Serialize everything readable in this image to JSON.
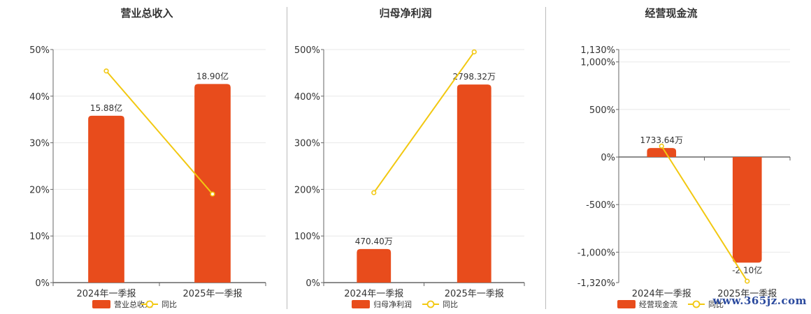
{
  "colors": {
    "bar": "#E84C1C",
    "line": "#F2C811",
    "grid": "#e8e8e8",
    "axis": "#666666"
  },
  "watermark": "www.365jz.com",
  "chart_data": [
    {
      "type": "bar",
      "title": "营业总收入",
      "categories": [
        "2024年一季报",
        "2025年一季报"
      ],
      "series": [
        {
          "name": "营业总收入",
          "kind": "bar",
          "values": [
            35.8,
            42.6
          ],
          "labels": [
            "15.88亿",
            "18.90亿"
          ]
        },
        {
          "name": "同比",
          "kind": "line",
          "values": [
            45.4,
            19.0
          ]
        }
      ],
      "yticks": [
        0,
        10,
        20,
        30,
        40,
        50
      ],
      "ytick_labels": [
        "0%",
        "10%",
        "20%",
        "30%",
        "40%",
        "50%"
      ],
      "ylim": [
        0,
        50
      ],
      "legend": "bottom"
    },
    {
      "type": "bar",
      "title": "归母净利润",
      "categories": [
        "2024年一季报",
        "2025年一季报"
      ],
      "series": [
        {
          "name": "归母净利润",
          "kind": "bar",
          "values": [
            72,
            425
          ],
          "labels": [
            "470.40万",
            "2798.32万"
          ]
        },
        {
          "name": "同比",
          "kind": "line",
          "values": [
            193,
            495
          ]
        }
      ],
      "yticks": [
        0,
        100,
        200,
        300,
        400,
        500
      ],
      "ytick_labels": [
        "0%",
        "100%",
        "200%",
        "300%",
        "400%",
        "500%"
      ],
      "ylim": [
        0,
        500
      ],
      "legend": "bottom"
    },
    {
      "type": "bar",
      "title": "经营现金流",
      "categories": [
        "2024年一季报",
        "2025年一季报"
      ],
      "series": [
        {
          "name": "经营现金流",
          "kind": "bar",
          "values": [
            95,
            -1110
          ],
          "labels": [
            "1733.64万",
            "-2.10亿"
          ]
        },
        {
          "name": "同比",
          "kind": "line",
          "values": [
            115,
            -1305
          ]
        }
      ],
      "yticks": [
        -1320,
        -1000,
        -500,
        0,
        500,
        1000,
        1130
      ],
      "ytick_labels": [
        "-1,320%",
        "-1,000%",
        "-500%",
        "0%",
        "500%",
        "1,000%",
        "1,130%"
      ],
      "ylim": [
        -1320,
        1130
      ],
      "legend": "bottom"
    }
  ]
}
